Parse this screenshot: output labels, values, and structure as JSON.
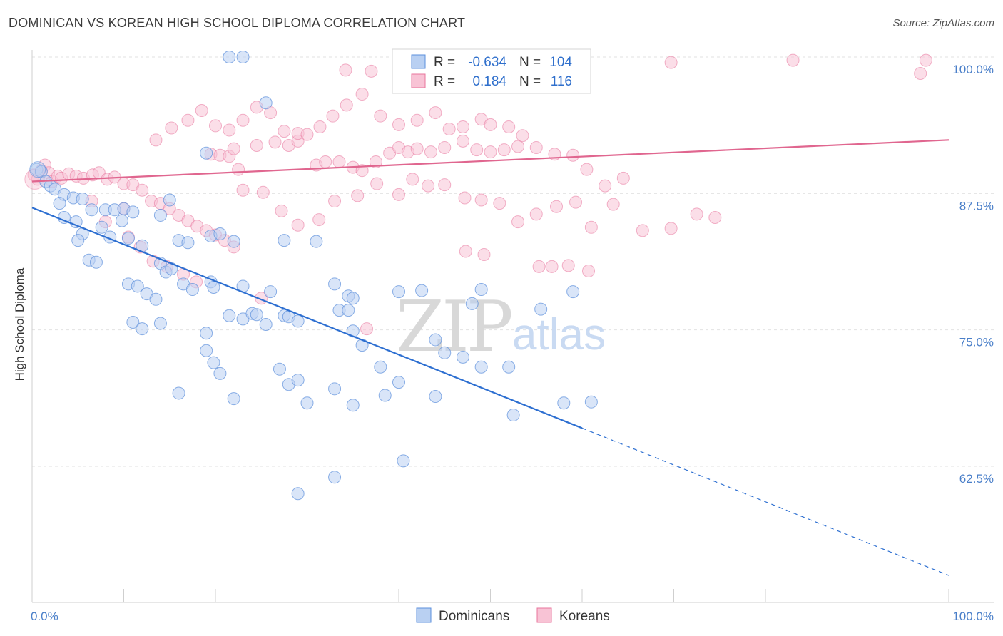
{
  "title": "DOMINICAN VS KOREAN HIGH SCHOOL DIPLOMA CORRELATION CHART",
  "source": "Source: ZipAtlas.com",
  "watermark": {
    "zip": "ZIP",
    "atlas": "atlas"
  },
  "colors": {
    "blue": "#5b8fdc",
    "blue_fill": "#b9d0f2",
    "pink": "#e8749c",
    "pink_fill": "#f8c3d5",
    "axis_text": "#4a7fc9"
  },
  "legend": {
    "rows": [
      {
        "r_label": "R =",
        "r_value": "-0.634",
        "n_label": "N =",
        "n_value": "104"
      },
      {
        "r_label": "R =",
        "r_value": "0.184",
        "n_label": "N =",
        "n_value": "116"
      }
    ]
  },
  "bottom_legend": [
    "Dominicans",
    "Koreans"
  ],
  "chart_data": {
    "type": "scatter",
    "title": "DOMINICAN VS KOREAN HIGH SCHOOL DIPLOMA CORRELATION CHART",
    "xlabel": "",
    "ylabel": "High School Diploma",
    "xlim": [
      0,
      100
    ],
    "ylim": [
      51.5,
      101.5
    ],
    "x_tick_labels": [
      "0.0%",
      "100.0%"
    ],
    "y_ticks": [
      62.5,
      75.0,
      87.5,
      100.0
    ],
    "y_tick_labels": [
      "62.5%",
      "75.0%",
      "87.5%",
      "100.0%"
    ],
    "series": [
      {
        "name": "Dominicans",
        "R": -0.634,
        "N": 104,
        "trend": {
          "x0": 0,
          "y0": 86.2,
          "x1": 60,
          "y1": 66.0,
          "dash_to_x": 100,
          "dash_to_y": 52.5
        },
        "points": [
          [
            21.5,
            100
          ],
          [
            23,
            100
          ],
          [
            25.5,
            95.8
          ],
          [
            19,
            91.2
          ],
          [
            0.5,
            89.7
          ],
          [
            1,
            89.5
          ],
          [
            1.5,
            88.6
          ],
          [
            2,
            88.2
          ],
          [
            2.5,
            87.9
          ],
          [
            3.5,
            87.4
          ],
          [
            4.5,
            87.1
          ],
          [
            5.5,
            87
          ],
          [
            3,
            86.6
          ],
          [
            6.5,
            86
          ],
          [
            8,
            86
          ],
          [
            9,
            86
          ],
          [
            10,
            86.1
          ],
          [
            11,
            85.8
          ],
          [
            15,
            86.9
          ],
          [
            14,
            85.5
          ],
          [
            3.5,
            85.3
          ],
          [
            4.8,
            84.9
          ],
          [
            9.8,
            85
          ],
          [
            7.6,
            84.4
          ],
          [
            5.5,
            83.8
          ],
          [
            5,
            83.2
          ],
          [
            8.5,
            83.5
          ],
          [
            10.5,
            83.4
          ],
          [
            16,
            83.2
          ],
          [
            17,
            83
          ],
          [
            22,
            83.1
          ],
          [
            27.5,
            83.2
          ],
          [
            31,
            83.1
          ],
          [
            12,
            82.7
          ],
          [
            19.5,
            83.6
          ],
          [
            20.5,
            83.8
          ],
          [
            6.2,
            81.4
          ],
          [
            7,
            81.2
          ],
          [
            14,
            81.1
          ],
          [
            14.6,
            80.3
          ],
          [
            15.2,
            80.6
          ],
          [
            10.5,
            79.2
          ],
          [
            11.5,
            79
          ],
          [
            12.5,
            78.3
          ],
          [
            13.5,
            77.8
          ],
          [
            16.5,
            79.2
          ],
          [
            17.5,
            78.7
          ],
          [
            19.5,
            79.4
          ],
          [
            19.8,
            78.9
          ],
          [
            23,
            79
          ],
          [
            26,
            78.5
          ],
          [
            27.5,
            76.3
          ],
          [
            33,
            79.2
          ],
          [
            34.5,
            78.1
          ],
          [
            35,
            77.9
          ],
          [
            40,
            78.5
          ],
          [
            42.5,
            78.6
          ],
          [
            49,
            78.7
          ],
          [
            48,
            77.4
          ],
          [
            55.5,
            76.9
          ],
          [
            59,
            78.5
          ],
          [
            11,
            75.7
          ],
          [
            12,
            75.1
          ],
          [
            14,
            75.6
          ],
          [
            19,
            74.7
          ],
          [
            21.5,
            76.3
          ],
          [
            23,
            76
          ],
          [
            24,
            76.5
          ],
          [
            24.5,
            76.4
          ],
          [
            25.5,
            75.5
          ],
          [
            28,
            76.2
          ],
          [
            29,
            75.8
          ],
          [
            33.5,
            76.8
          ],
          [
            34.5,
            76.8
          ],
          [
            35,
            74.9
          ],
          [
            36,
            73.6
          ],
          [
            44,
            74.1
          ],
          [
            45,
            72.9
          ],
          [
            47,
            72.5
          ],
          [
            19,
            73.1
          ],
          [
            19.8,
            72
          ],
          [
            20.5,
            71
          ],
          [
            27,
            71.4
          ],
          [
            28,
            70
          ],
          [
            29,
            70.4
          ],
          [
            33,
            69.6
          ],
          [
            38,
            71.6
          ],
          [
            38.5,
            69
          ],
          [
            40,
            70.2
          ],
          [
            44,
            68.9
          ],
          [
            49,
            71.6
          ],
          [
            52,
            71.6
          ],
          [
            58,
            68.3
          ],
          [
            61,
            68.4
          ],
          [
            16,
            69.2
          ],
          [
            22,
            68.7
          ],
          [
            30,
            68.3
          ],
          [
            35,
            68.1
          ],
          [
            52.5,
            67.2
          ],
          [
            40.5,
            63
          ],
          [
            33,
            61.5
          ],
          [
            29,
            60
          ]
        ]
      },
      {
        "name": "Koreans",
        "R": 0.184,
        "N": 116,
        "trend": {
          "x0": 0,
          "y0": 88.6,
          "x1": 100,
          "y1": 92.4
        },
        "points": [
          [
            0.2,
            89.2
          ],
          [
            0.6,
            88.8
          ],
          [
            1,
            89.6
          ],
          [
            1.4,
            90.1
          ],
          [
            1.8,
            89.4
          ],
          [
            2.2,
            88.6
          ],
          [
            2.8,
            89.1
          ],
          [
            3.2,
            88.9
          ],
          [
            4,
            89.3
          ],
          [
            4.8,
            89.1
          ],
          [
            5.6,
            88.9
          ],
          [
            6.6,
            89.2
          ],
          [
            7.3,
            89.4
          ],
          [
            8.2,
            88.8
          ],
          [
            9,
            89
          ],
          [
            10,
            88.4
          ],
          [
            11,
            88.3
          ],
          [
            12,
            87.8
          ],
          [
            13,
            86.8
          ],
          [
            14,
            86.6
          ],
          [
            15,
            86.1
          ],
          [
            16,
            85.5
          ],
          [
            17,
            85
          ],
          [
            18,
            84.5
          ],
          [
            19,
            84.1
          ],
          [
            20,
            83.7
          ],
          [
            21,
            83.2
          ],
          [
            22,
            82.6
          ],
          [
            6.5,
            86.8
          ],
          [
            10,
            86.1
          ],
          [
            8,
            84.9
          ],
          [
            10.5,
            83.5
          ],
          [
            11.8,
            82.6
          ],
          [
            13.2,
            81.3
          ],
          [
            14.7,
            80.8
          ],
          [
            16.5,
            80.1
          ],
          [
            17.9,
            79.4
          ],
          [
            19.5,
            91.1
          ],
          [
            20.5,
            91
          ],
          [
            21.5,
            90.9
          ],
          [
            22,
            91.6
          ],
          [
            24.5,
            91.9
          ],
          [
            26.5,
            92.2
          ],
          [
            28,
            91.9
          ],
          [
            29,
            92.3
          ],
          [
            31,
            90.1
          ],
          [
            32,
            90.4
          ],
          [
            33.5,
            90.4
          ],
          [
            35,
            89.9
          ],
          [
            36,
            89.6
          ],
          [
            37.5,
            90.4
          ],
          [
            39,
            91.2
          ],
          [
            40,
            91.7
          ],
          [
            41,
            91.3
          ],
          [
            42,
            91.6
          ],
          [
            43.5,
            91.3
          ],
          [
            45,
            91.7
          ],
          [
            47,
            92.3
          ],
          [
            48.5,
            91.5
          ],
          [
            50,
            91.3
          ],
          [
            51.5,
            91.5
          ],
          [
            53,
            91.8
          ],
          [
            55,
            91.7
          ],
          [
            57,
            91.1
          ],
          [
            59,
            91
          ],
          [
            60.5,
            89.7
          ],
          [
            62.5,
            88.2
          ],
          [
            64.5,
            88.9
          ],
          [
            13.5,
            92.4
          ],
          [
            15.2,
            93.5
          ],
          [
            17,
            94.2
          ],
          [
            18.5,
            95.1
          ],
          [
            20,
            93.7
          ],
          [
            21.5,
            93.3
          ],
          [
            23,
            94.2
          ],
          [
            24.5,
            95.4
          ],
          [
            26,
            94.9
          ],
          [
            27.5,
            93.2
          ],
          [
            29,
            93
          ],
          [
            30,
            92.9
          ],
          [
            31.4,
            93.6
          ],
          [
            32.8,
            94.6
          ],
          [
            34.3,
            95.6
          ],
          [
            36,
            96.6
          ],
          [
            37,
            98.7
          ],
          [
            38,
            94.6
          ],
          [
            40,
            93.8
          ],
          [
            42,
            94.2
          ],
          [
            44,
            94.9
          ],
          [
            45.5,
            93.4
          ],
          [
            47,
            93.6
          ],
          [
            49,
            94.3
          ],
          [
            50,
            93.8
          ],
          [
            52,
            93.6
          ],
          [
            53.5,
            92.8
          ],
          [
            22.5,
            89.7
          ],
          [
            23,
            87.8
          ],
          [
            25.2,
            87.6
          ],
          [
            27.2,
            85.9
          ],
          [
            29,
            84.6
          ],
          [
            31.3,
            85.1
          ],
          [
            33,
            86.8
          ],
          [
            35.5,
            87.3
          ],
          [
            37.6,
            88.4
          ],
          [
            40,
            87.4
          ],
          [
            41.5,
            88.8
          ],
          [
            43.2,
            88.2
          ],
          [
            45,
            88.3
          ],
          [
            47.2,
            87.1
          ],
          [
            49,
            86.9
          ],
          [
            51,
            86.6
          ],
          [
            53,
            84.9
          ],
          [
            55,
            85.6
          ],
          [
            57.2,
            86.3
          ],
          [
            59.3,
            86.7
          ],
          [
            61,
            84.4
          ],
          [
            63.4,
            86.5
          ],
          [
            66.6,
            84.1
          ],
          [
            69.7,
            84.3
          ],
          [
            72.5,
            85.6
          ],
          [
            74.5,
            85.3
          ],
          [
            47.3,
            82.2
          ],
          [
            49.3,
            81.9
          ],
          [
            55.3,
            80.8
          ],
          [
            56.7,
            80.8
          ],
          [
            58.5,
            80.9
          ],
          [
            60.7,
            80.4
          ],
          [
            69.7,
            99.5
          ],
          [
            83,
            99.7
          ],
          [
            97.5,
            99.7
          ],
          [
            96.9,
            98.5
          ],
          [
            34.2,
            98.8
          ],
          [
            25,
            77.9
          ],
          [
            36.5,
            75.1
          ]
        ]
      }
    ]
  }
}
